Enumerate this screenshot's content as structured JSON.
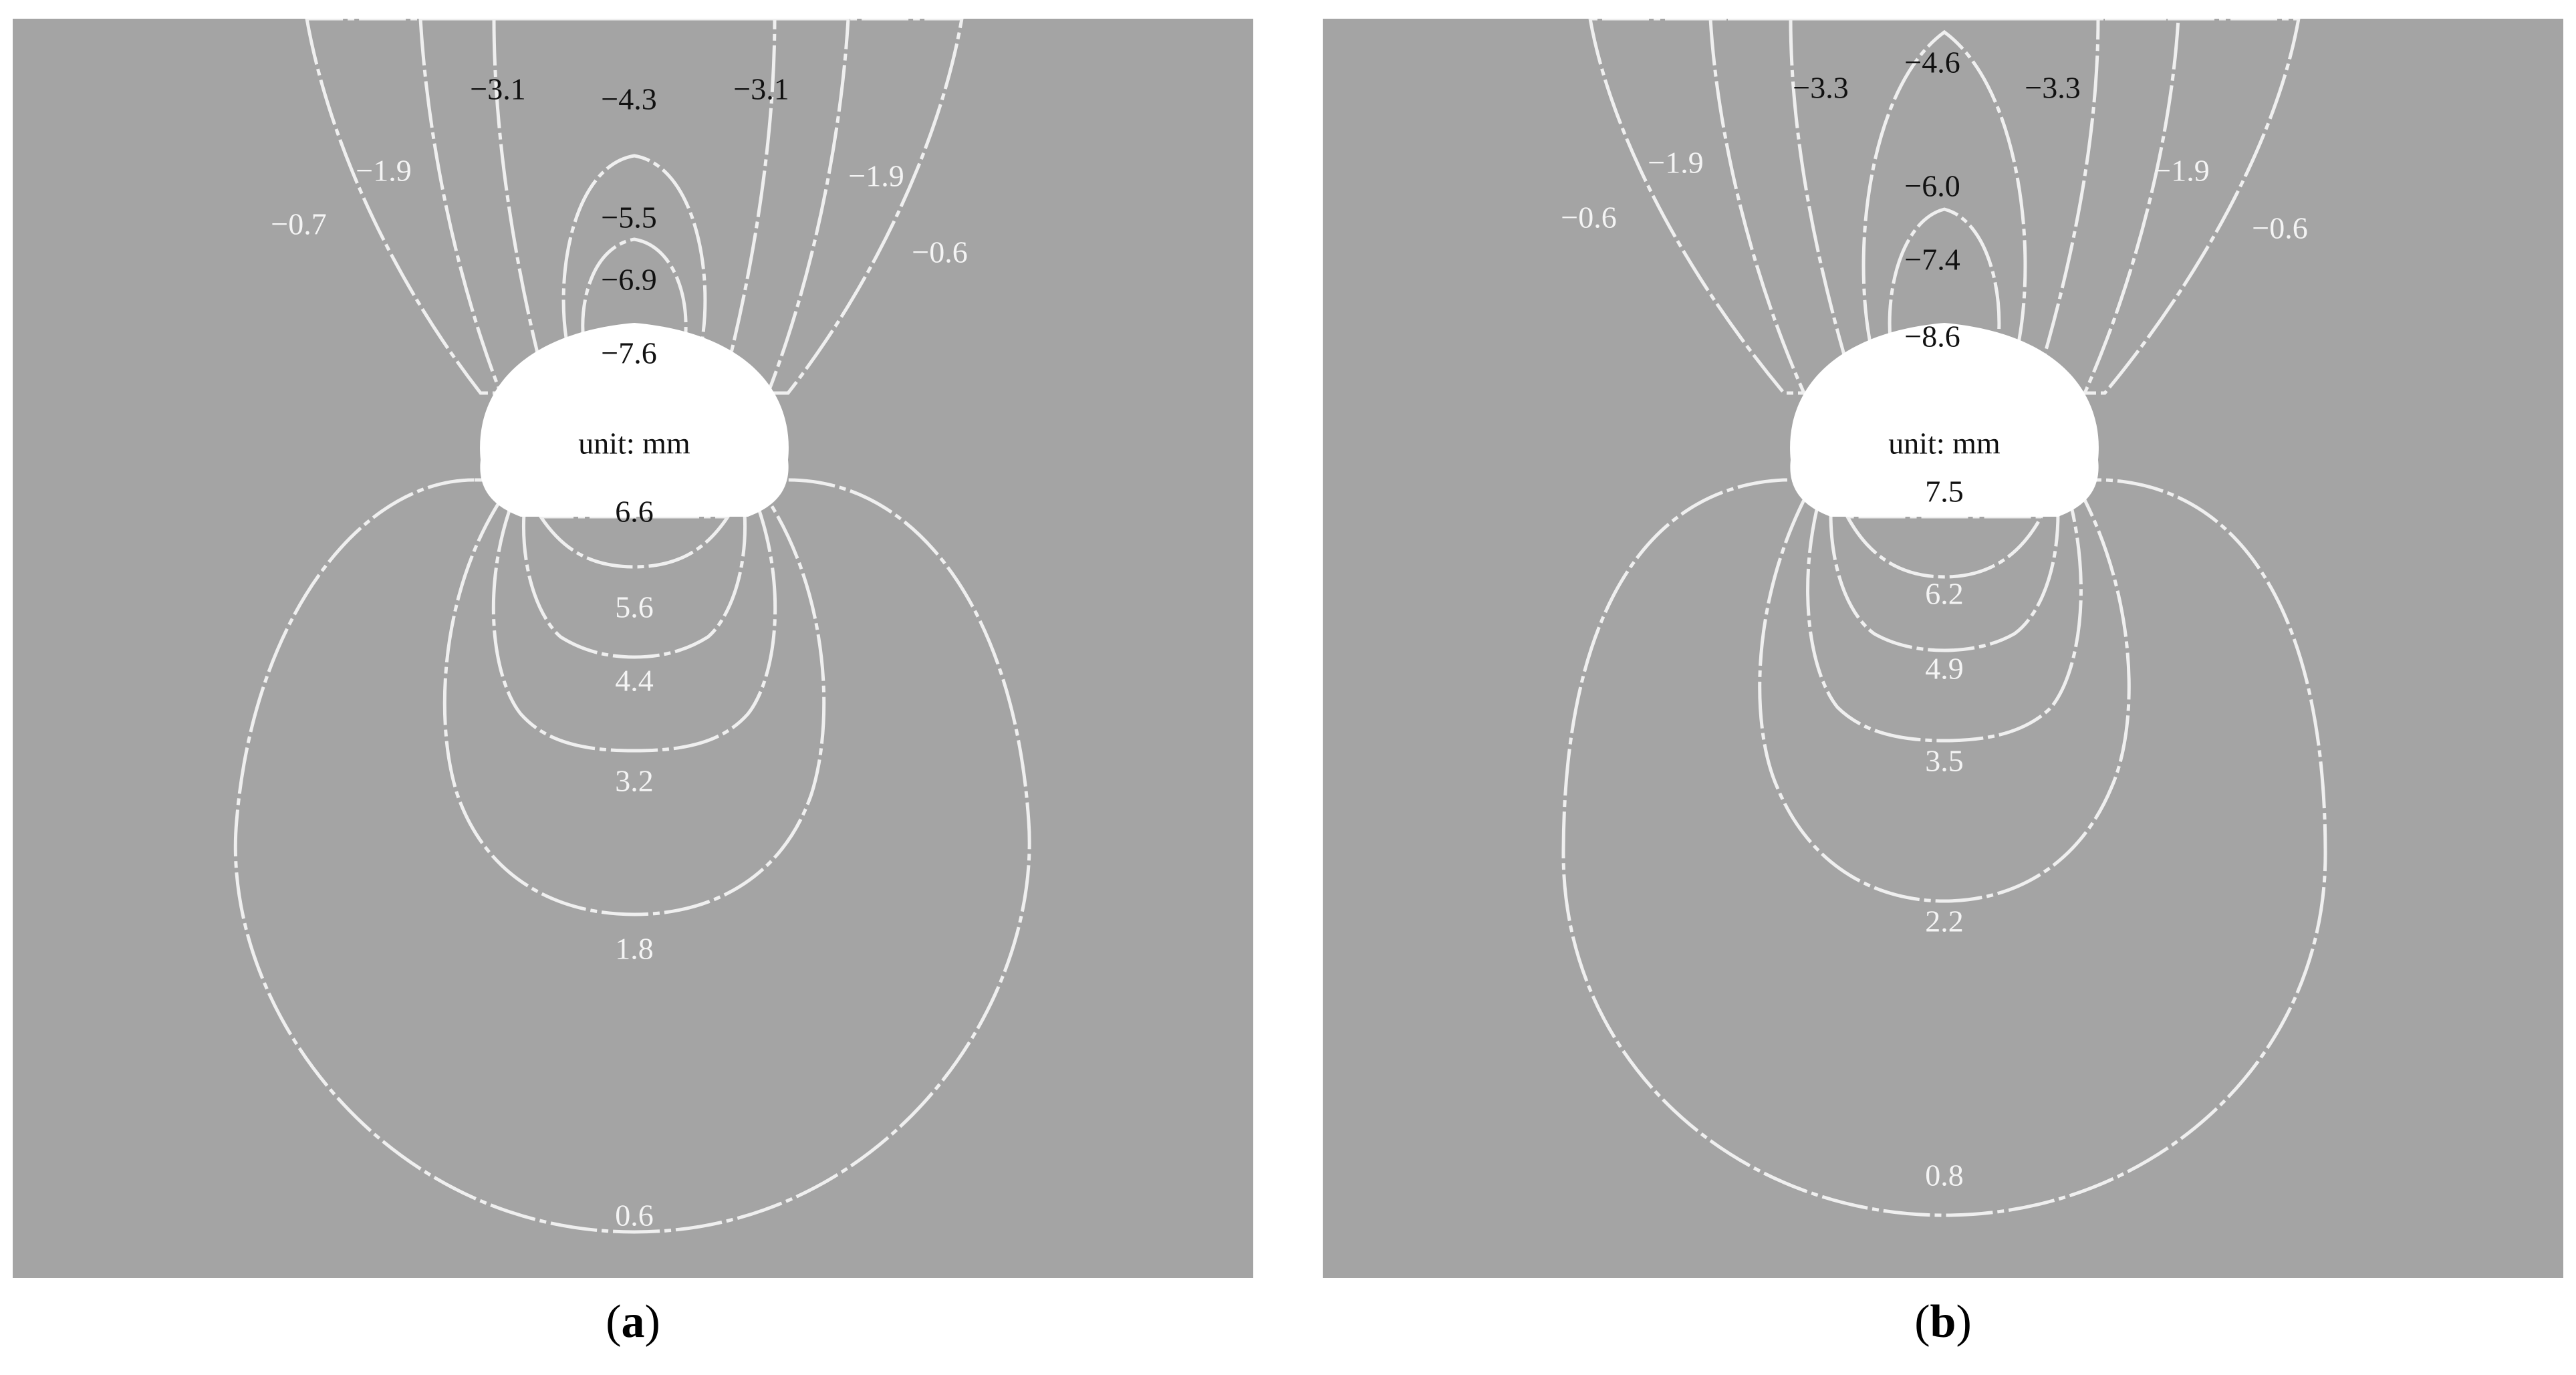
{
  "panels": [
    {
      "id": "a",
      "caption_open": "(",
      "caption_letter": "a",
      "caption_close": ")",
      "unit_label": "unit: mm",
      "negative_labels": [
        "−0.7",
        "−1.9",
        "−3.1",
        "−4.3",
        "−3.1",
        "−1.9",
        "−0.6",
        "−5.5",
        "−6.9",
        "−7.6"
      ],
      "positive_labels": [
        "6.6",
        "5.6",
        "4.4",
        "3.2",
        "1.8",
        "0.6"
      ]
    },
    {
      "id": "b",
      "caption_open": "(",
      "caption_letter": "b",
      "caption_close": ")",
      "unit_label": "unit: mm",
      "negative_labels": [
        "−0.6",
        "−1.9",
        "−3.3",
        "−4.6",
        "−3.3",
        "−1.9",
        "−0.6",
        "−6.0",
        "−7.4",
        "−8.6"
      ],
      "positive_labels": [
        "7.5",
        "6.2",
        "4.9",
        "3.5",
        "2.2",
        "0.8"
      ]
    }
  ],
  "colors": {
    "background": "#a4a4a4",
    "contour_line": "#efefef",
    "void": "#ffffff",
    "neg_bands": [
      "#b4b4b4",
      "#c4c4c4",
      "#d3d3d3",
      "#e1e1e1",
      "#ececec"
    ],
    "pos_bands": [
      "#8f8f8f",
      "#7a7a7a",
      "#626262",
      "#4c4c4c",
      "#3a3a3a"
    ]
  }
}
